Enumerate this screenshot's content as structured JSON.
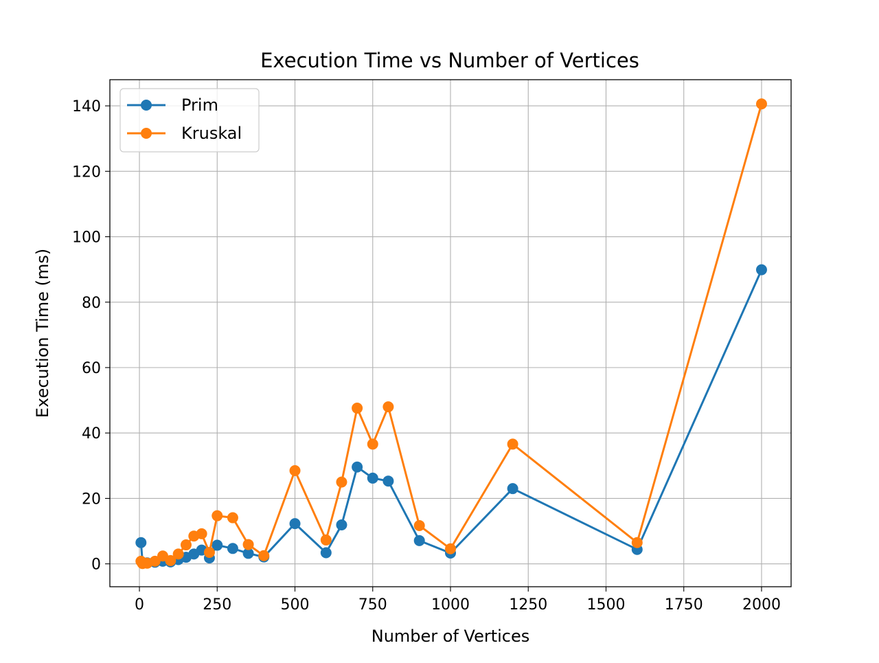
{
  "chart_data": {
    "type": "line",
    "title": "Execution Time vs Number of Vertices",
    "xlabel": "Number of Vertices",
    "ylabel": "Execution Time (ms)",
    "xlim": [
      -95,
      2095
    ],
    "ylim": [
      -7,
      148
    ],
    "xticks": [
      0,
      250,
      500,
      750,
      1000,
      1250,
      1500,
      1750,
      2000
    ],
    "yticks": [
      0,
      20,
      40,
      60,
      80,
      100,
      120,
      140
    ],
    "grid": true,
    "legend": "top-left",
    "x": [
      5,
      10,
      25,
      50,
      75,
      100,
      125,
      150,
      175,
      200,
      225,
      250,
      300,
      350,
      400,
      500,
      600,
      650,
      700,
      750,
      800,
      900,
      1000,
      1200,
      1600,
      2000
    ],
    "series": [
      {
        "name": "Prim",
        "color": "#1f77b4",
        "values": [
          6.5,
          0.3,
          0.3,
          0.5,
          0.8,
          0.6,
          1.3,
          2.0,
          3.0,
          4.2,
          1.8,
          5.7,
          4.7,
          3.2,
          2.1,
          12.3,
          3.4,
          11.9,
          29.6,
          26.2,
          25.3,
          7.1,
          3.3,
          23.0,
          4.4,
          89.9
        ]
      },
      {
        "name": "Kruskal",
        "color": "#ff7f0e",
        "values": [
          0.8,
          0.1,
          0.2,
          0.8,
          2.4,
          1.0,
          3.0,
          5.8,
          8.5,
          9.2,
          3.5,
          14.7,
          14.1,
          5.9,
          2.5,
          28.5,
          7.3,
          25.0,
          47.6,
          36.6,
          48.0,
          11.7,
          4.6,
          36.6,
          6.5,
          140.6
        ]
      }
    ]
  }
}
